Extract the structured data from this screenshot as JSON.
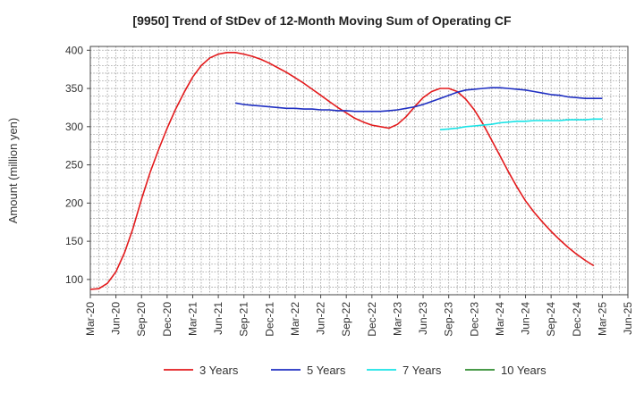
{
  "chart_data": {
    "type": "line",
    "title": "[9950]  Trend of StDev of 12-Month Moving Sum of Operating CF",
    "xlabel": "",
    "ylabel": "Amount (million yen)",
    "ylim": [
      80,
      405
    ],
    "yticks": [
      100,
      150,
      200,
      250,
      300,
      350,
      400
    ],
    "x_start": "Mar-20",
    "x_end": "Jun-25",
    "xticks": [
      "Mar-20",
      "Jun-20",
      "Sep-20",
      "Dec-20",
      "Mar-21",
      "Jun-21",
      "Sep-21",
      "Dec-21",
      "Mar-22",
      "Jun-22",
      "Sep-22",
      "Dec-22",
      "Mar-23",
      "Jun-23",
      "Sep-23",
      "Dec-23",
      "Mar-24",
      "Jun-24",
      "Sep-24",
      "Dec-24",
      "Mar-25",
      "Jun-25"
    ],
    "grid": true,
    "legend_position": "bottom",
    "series": [
      {
        "name": "3 Years",
        "color": "#e31a1c",
        "points": [
          [
            "Mar-20",
            87
          ],
          [
            "Apr-20",
            88
          ],
          [
            "May-20",
            95
          ],
          [
            "Jun-20",
            110
          ],
          [
            "Jul-20",
            135
          ],
          [
            "Aug-20",
            167
          ],
          [
            "Sep-20",
            205
          ],
          [
            "Oct-20",
            240
          ],
          [
            "Nov-20",
            270
          ],
          [
            "Dec-20",
            298
          ],
          [
            "Jan-21",
            323
          ],
          [
            "Feb-21",
            345
          ],
          [
            "Mar-21",
            365
          ],
          [
            "Apr-21",
            380
          ],
          [
            "May-21",
            390
          ],
          [
            "Jun-21",
            395
          ],
          [
            "Jul-21",
            397
          ],
          [
            "Aug-21",
            397
          ],
          [
            "Sep-21",
            395
          ],
          [
            "Oct-21",
            392
          ],
          [
            "Nov-21",
            388
          ],
          [
            "Dec-21",
            383
          ],
          [
            "Jan-22",
            377
          ],
          [
            "Feb-22",
            371
          ],
          [
            "Mar-22",
            364
          ],
          [
            "Apr-22",
            357
          ],
          [
            "May-22",
            349
          ],
          [
            "Jun-22",
            341
          ],
          [
            "Jul-22",
            333
          ],
          [
            "Aug-22",
            325
          ],
          [
            "Sep-22",
            318
          ],
          [
            "Oct-22",
            311
          ],
          [
            "Nov-22",
            306
          ],
          [
            "Dec-22",
            302
          ],
          [
            "Jan-23",
            300
          ],
          [
            "Feb-23",
            298
          ],
          [
            "Mar-23",
            303
          ],
          [
            "Apr-23",
            313
          ],
          [
            "May-23",
            326
          ],
          [
            "Jun-23",
            338
          ],
          [
            "Jul-23",
            346
          ],
          [
            "Aug-23",
            350
          ],
          [
            "Sep-23",
            350
          ],
          [
            "Oct-23",
            346
          ],
          [
            "Nov-23",
            336
          ],
          [
            "Dec-23",
            322
          ],
          [
            "Jan-24",
            304
          ],
          [
            "Feb-24",
            283
          ],
          [
            "Mar-24",
            262
          ],
          [
            "Apr-24",
            241
          ],
          [
            "May-24",
            221
          ],
          [
            "Jun-24",
            203
          ],
          [
            "Jul-24",
            188
          ],
          [
            "Aug-24",
            175
          ],
          [
            "Sep-24",
            163
          ],
          [
            "Oct-24",
            152
          ],
          [
            "Nov-24",
            142
          ],
          [
            "Dec-24",
            133
          ],
          [
            "Jan-25",
            125
          ],
          [
            "Feb-25",
            118
          ]
        ]
      },
      {
        "name": "5 Years",
        "color": "#1f2fc2",
        "points": [
          [
            "Aug-21",
            331
          ],
          [
            "Sep-21",
            329
          ],
          [
            "Oct-21",
            328
          ],
          [
            "Nov-21",
            327
          ],
          [
            "Dec-21",
            326
          ],
          [
            "Jan-22",
            325
          ],
          [
            "Feb-22",
            324
          ],
          [
            "Mar-22",
            324
          ],
          [
            "Apr-22",
            323
          ],
          [
            "May-22",
            323
          ],
          [
            "Jun-22",
            322
          ],
          [
            "Jul-22",
            322
          ],
          [
            "Aug-22",
            321
          ],
          [
            "Sep-22",
            321
          ],
          [
            "Oct-22",
            320
          ],
          [
            "Nov-22",
            320
          ],
          [
            "Dec-22",
            320
          ],
          [
            "Jan-23",
            320
          ],
          [
            "Feb-23",
            321
          ],
          [
            "Mar-23",
            322
          ],
          [
            "Apr-23",
            324
          ],
          [
            "May-23",
            326
          ],
          [
            "Jun-23",
            329
          ],
          [
            "Jul-23",
            333
          ],
          [
            "Aug-23",
            337
          ],
          [
            "Sep-23",
            341
          ],
          [
            "Oct-23",
            345
          ],
          [
            "Nov-23",
            348
          ],
          [
            "Dec-23",
            349
          ],
          [
            "Jan-24",
            350
          ],
          [
            "Feb-24",
            351
          ],
          [
            "Mar-24",
            351
          ],
          [
            "Apr-24",
            350
          ],
          [
            "May-24",
            349
          ],
          [
            "Jun-24",
            348
          ],
          [
            "Jul-24",
            346
          ],
          [
            "Aug-24",
            344
          ],
          [
            "Sep-24",
            342
          ],
          [
            "Oct-24",
            341
          ],
          [
            "Nov-24",
            339
          ],
          [
            "Dec-24",
            338
          ],
          [
            "Jan-25",
            337
          ],
          [
            "Feb-25",
            337
          ],
          [
            "Mar-25",
            337
          ]
        ]
      },
      {
        "name": "7 Years",
        "color": "#17e3e6",
        "points": [
          [
            "Aug-23",
            296
          ],
          [
            "Sep-23",
            297
          ],
          [
            "Oct-23",
            298
          ],
          [
            "Nov-23",
            300
          ],
          [
            "Dec-23",
            301
          ],
          [
            "Jan-24",
            302
          ],
          [
            "Feb-24",
            303
          ],
          [
            "Mar-24",
            305
          ],
          [
            "Apr-24",
            306
          ],
          [
            "May-24",
            307
          ],
          [
            "Jun-24",
            307
          ],
          [
            "Jul-24",
            308
          ],
          [
            "Aug-24",
            308
          ],
          [
            "Sep-24",
            308
          ],
          [
            "Oct-24",
            308
          ],
          [
            "Nov-24",
            309
          ],
          [
            "Dec-24",
            309
          ],
          [
            "Jan-25",
            309
          ],
          [
            "Feb-25",
            310
          ],
          [
            "Mar-25",
            310
          ]
        ]
      },
      {
        "name": "10 Years",
        "color": "#2e8b2e",
        "points": []
      }
    ]
  }
}
